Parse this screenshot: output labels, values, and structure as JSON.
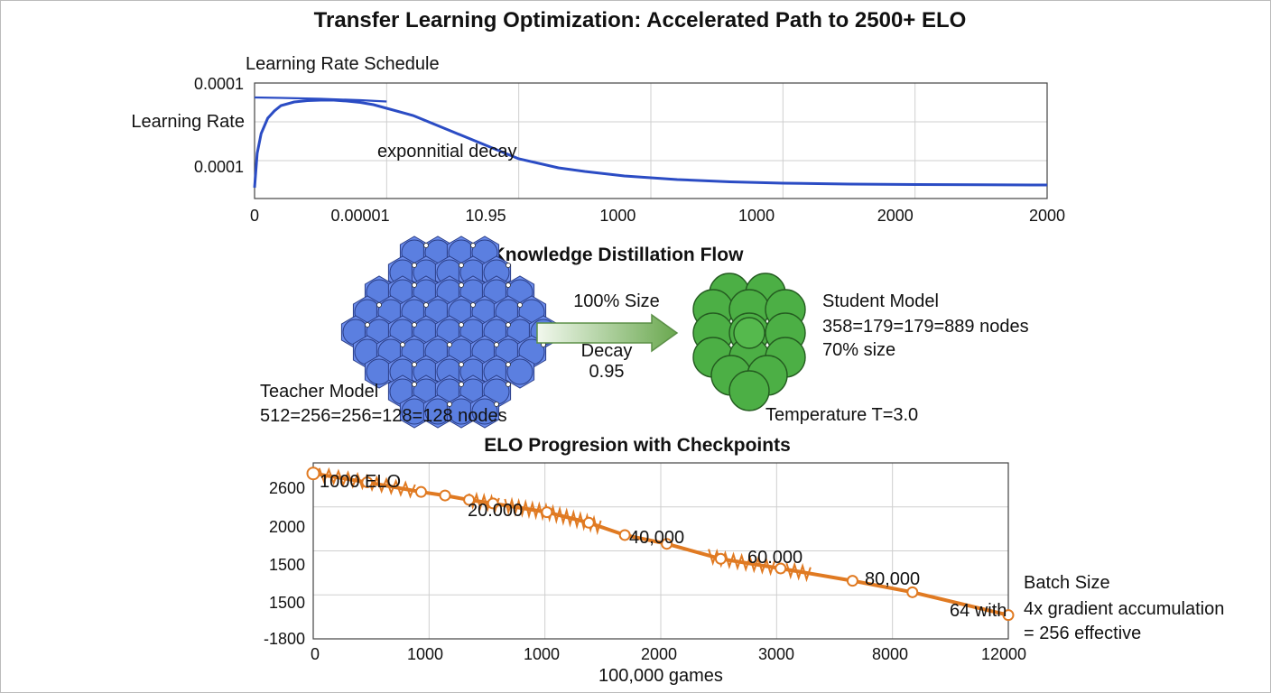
{
  "page": {
    "title": "Transfer Learning Optimization: Accelerated Path to 2500+ ELO"
  },
  "lr_chart": {
    "title": "Learning Rate Schedule",
    "ylabel": "Learning Rate",
    "annotation": "exponnitial decay",
    "y_ticks": [
      "0.0001",
      "0.0001"
    ],
    "x_ticks": [
      "0",
      "0.00001",
      "10.95",
      "1000",
      "1000",
      "2000",
      "2000"
    ],
    "color": "#2b4cc4"
  },
  "distillation": {
    "title": "Knowledge Distillation Flow",
    "teacher_label": "Teacher Model",
    "teacher_nodes": "512=256=256=128=128 nodes",
    "arrow_top": "100% Size",
    "arrow_mid": "Decay",
    "arrow_bottom": "0.95",
    "student_label": "Student Model",
    "student_nodes": "358=179=179=889 nodes",
    "student_size": "70% size",
    "temperature": "Temperature T=3.0",
    "teacher_color": "#5b7fe0",
    "student_color": "#4caf45"
  },
  "chart_data": [
    {
      "type": "line",
      "title": "Learning Rate Schedule",
      "ylabel": "Learning Rate",
      "xlabel": "",
      "x_tick_labels": [
        "0",
        "0.00001",
        "10.95",
        "1000",
        "1000",
        "2000",
        "2000"
      ],
      "y_tick_labels": [
        "0.0001",
        "0.0001"
      ],
      "annotations": [
        "exponnitial decay"
      ],
      "series": [
        {
          "x": [
            0,
            0.02,
            0.05,
            0.1,
            0.15,
            0.2,
            0.3,
            0.4,
            0.5,
            0.6,
            0.7,
            0.8,
            0.9,
            1.0,
            1.2,
            1.5,
            2.0,
            2.3,
            2.5,
            2.8,
            3.2,
            3.6,
            4.0,
            4.5,
            5.0,
            5.5,
            6.0
          ],
          "y": [
            0.0,
            0.38,
            0.6,
            0.77,
            0.85,
            0.91,
            0.95,
            0.965,
            0.97,
            0.97,
            0.96,
            0.945,
            0.92,
            0.88,
            0.8,
            0.62,
            0.32,
            0.22,
            0.18,
            0.13,
            0.09,
            0.065,
            0.05,
            0.04,
            0.035,
            0.032,
            0.03
          ]
        },
        {
          "x": [
            0,
            0.2,
            0.5,
            0.8,
            1.0
          ],
          "y": [
            1.0,
            0.995,
            0.985,
            0.97,
            0.955
          ]
        }
      ]
    },
    {
      "type": "line",
      "title": "ELO Progresion with Checkpoints",
      "xlabel": "100,000 games",
      "ylabel": "",
      "x_tick_labels": [
        "0",
        "1000",
        "1000",
        "2000",
        "3000",
        "8000",
        "12000"
      ],
      "y_tick_labels": [
        "2600",
        "2000",
        "1500",
        "1500",
        "-1800"
      ],
      "annotations": [
        "1000 ELO",
        "20.000",
        "40,000",
        "60.000",
        "80,000",
        "64 with"
      ],
      "side_note": [
        "Batch Size",
        "4x gradient accumulation",
        "= 256 effective"
      ],
      "series": [
        {
          "x": [
            0,
            0.45,
            0.9,
            1.1,
            1.3,
            1.5,
            1.95,
            2.3,
            2.6,
            2.95,
            3.4,
            3.9,
            4.5,
            5.0,
            5.8
          ],
          "y": [
            0.94,
            0.89,
            0.835,
            0.815,
            0.79,
            0.77,
            0.72,
            0.66,
            0.59,
            0.54,
            0.455,
            0.4,
            0.33,
            0.265,
            0.135
          ]
        }
      ],
      "color": "#e07a22"
    }
  ],
  "elo_chart": {
    "title": "ELO Progresion with Checkpoints",
    "xlabel": "100,000 games",
    "annotations": [
      "1000 ELO",
      "20.000",
      "40,000",
      "60.000",
      "80,000",
      "64 with"
    ],
    "y_ticks": [
      "2600",
      "2000",
      "1500",
      "1500",
      "-1800"
    ],
    "x_ticks": [
      "0",
      "1000",
      "1000",
      "2000",
      "3000",
      "8000",
      "12000"
    ],
    "side_title": "Batch Size",
    "side_line1": "4x gradient accumulation",
    "side_line2": "= 256 effective",
    "color": "#e07a22"
  }
}
